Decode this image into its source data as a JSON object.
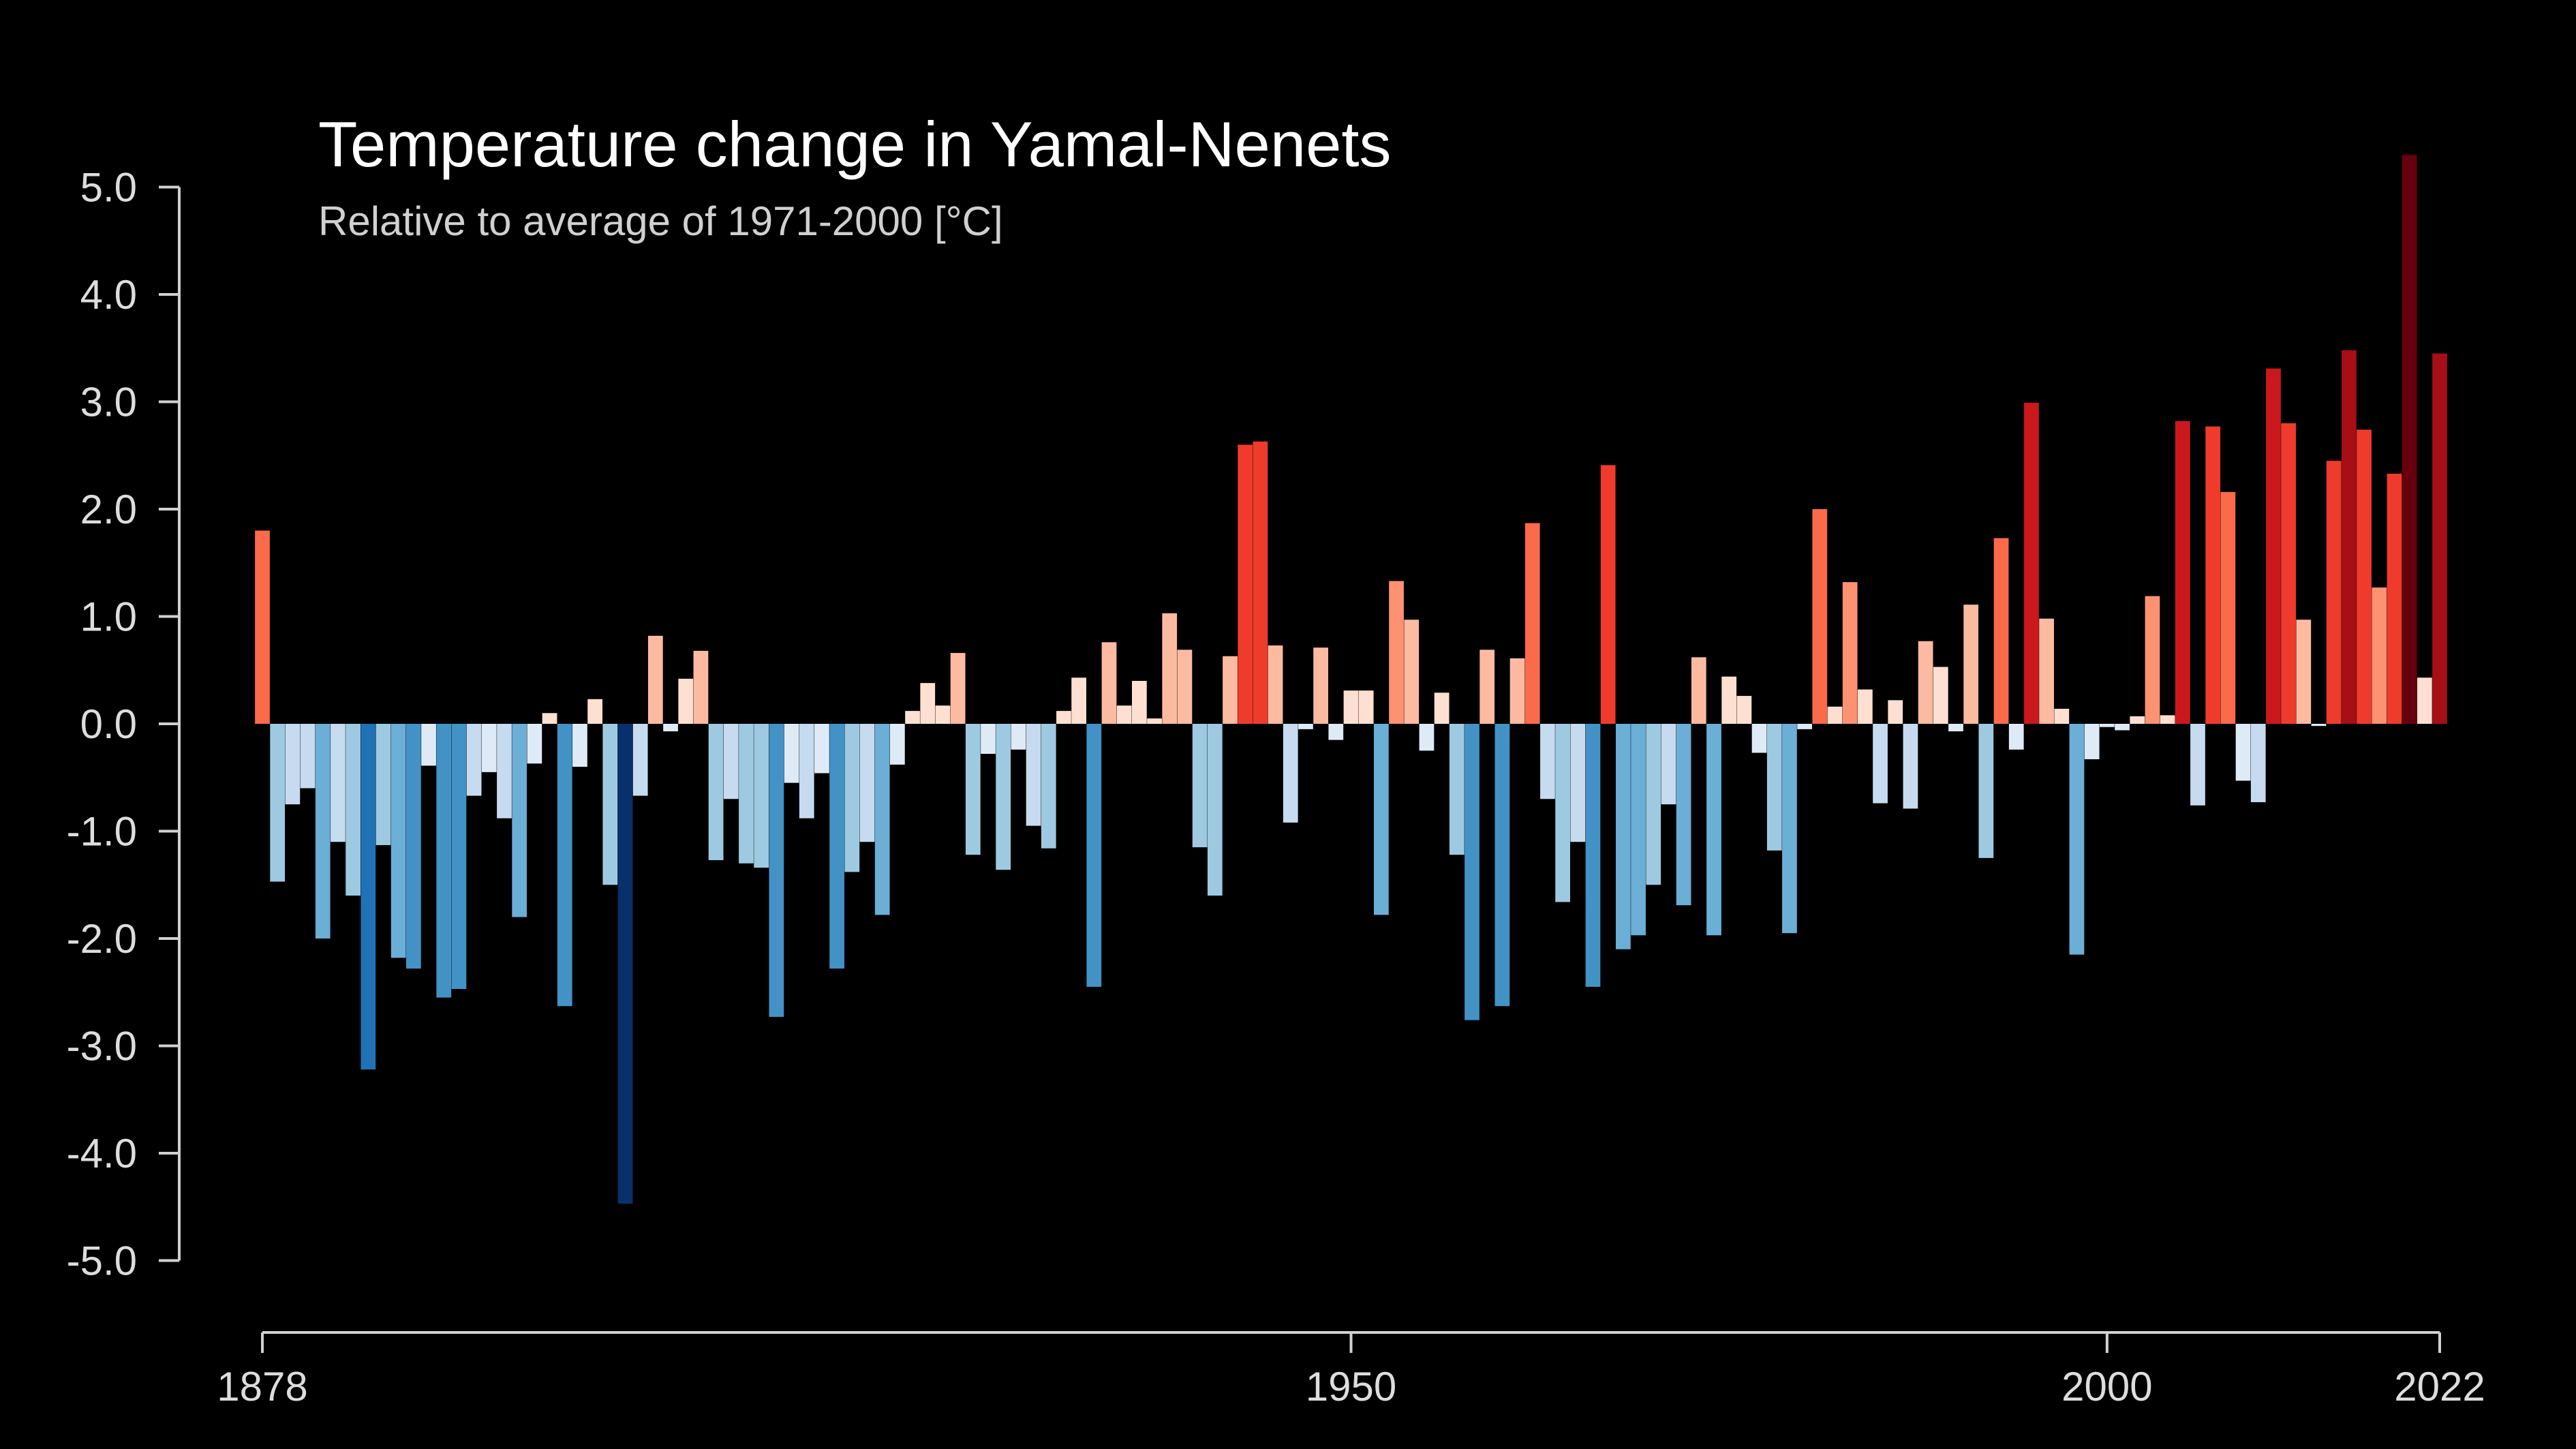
{
  "chart_data": {
    "type": "bar",
    "title": "Temperature change in Yamal-Nenets",
    "subtitle": "Relative to average of 1971-2000  [°C]",
    "xlabel": "",
    "ylabel": "",
    "x_start": 1878,
    "x_end": 2022,
    "xlim": [
      1878,
      2022
    ],
    "ylim": [
      -5,
      5
    ],
    "grid": false,
    "legend": "none",
    "y_ticks": [
      5,
      4,
      3,
      2,
      1,
      0,
      -1,
      -2,
      -3,
      -4,
      -5
    ],
    "y_tick_labels": [
      "5.0",
      "4.0",
      "3.0",
      "2.0",
      "1.0",
      "0.0",
      "-1.0",
      "-2.0",
      "-3.0",
      "-4.0",
      "-5.0"
    ],
    "x_ticks": [
      1878,
      1950,
      2000,
      2022
    ],
    "x_tick_labels": [
      "1878",
      "1950",
      "2000",
      "2022"
    ],
    "color_scale": {
      "negative": [
        "#deebf7",
        "#c6dbef",
        "#9ecae1",
        "#6baed6",
        "#4292c6",
        "#2171b5",
        "#08519c",
        "#08306b"
      ],
      "positive": [
        "#fee0d2",
        "#fcbba1",
        "#fc9272",
        "#fb6a4a",
        "#ef3b2c",
        "#cb181d",
        "#a50f15",
        "#67000d"
      ],
      "max_abs": 4.5
    },
    "values": [
      1.8,
      -1.47,
      -0.75,
      -0.6,
      -2.0,
      -1.1,
      -1.6,
      -3.22,
      -1.13,
      -2.18,
      -2.28,
      -0.39,
      -2.55,
      -2.47,
      -0.67,
      -0.45,
      -0.88,
      -1.8,
      -0.37,
      0.1,
      -2.63,
      -0.4,
      0.23,
      -1.5,
      -4.47,
      -0.67,
      0.82,
      -0.07,
      0.42,
      0.68,
      -1.27,
      -0.7,
      -1.3,
      -1.34,
      -2.73,
      -0.55,
      -0.88,
      -0.46,
      -2.28,
      -1.38,
      -1.1,
      -1.78,
      -0.38,
      0.12,
      0.38,
      0.17,
      0.66,
      -1.22,
      -0.28,
      -1.36,
      -0.24,
      -0.95,
      -1.16,
      0.12,
      0.43,
      -2.45,
      0.76,
      0.17,
      0.4,
      0.05,
      1.03,
      0.69,
      -1.15,
      -1.6,
      0.63,
      2.6,
      2.63,
      0.73,
      -0.92,
      -0.05,
      0.71,
      -0.15,
      0.31,
      0.31,
      -1.78,
      1.33,
      0.97,
      -0.25,
      0.29,
      -1.22,
      -2.76,
      0.69,
      -2.63,
      0.61,
      1.87,
      -0.7,
      -1.66,
      -1.1,
      -2.45,
      2.41,
      -2.1,
      -1.97,
      -1.5,
      -0.75,
      -1.69,
      0.62,
      -1.97,
      0.44,
      0.26,
      -0.27,
      -1.18,
      -1.95,
      -0.05,
      2.0,
      0.16,
      1.32,
      0.32,
      -0.74,
      0.22,
      -0.79,
      0.77,
      0.53,
      -0.07,
      1.11,
      -1.25,
      1.73,
      -0.24,
      2.99,
      0.98,
      0.14,
      -2.15,
      -0.33,
      -0.03,
      -0.06,
      0.07,
      1.19,
      0.08,
      2.82,
      -0.76,
      2.77,
      2.16,
      -0.53,
      -0.73,
      3.31,
      2.8,
      0.97,
      -0.02,
      2.45,
      3.48,
      2.74,
      1.27,
      2.33,
      5.3,
      0.43,
      3.45
    ]
  }
}
